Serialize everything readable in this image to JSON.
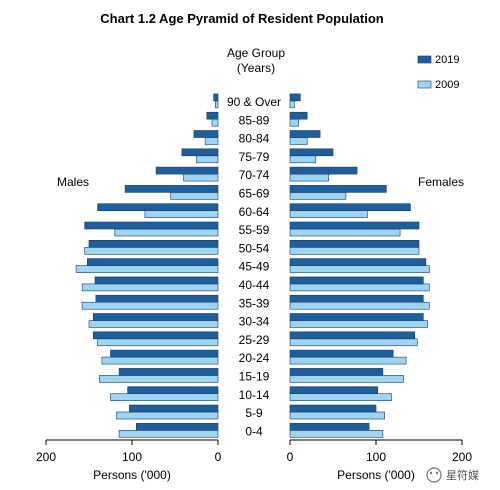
{
  "chart_data": {
    "type": "bar",
    "title": "Chart 1.2  Age Pyramid of Resident Population",
    "age_group_label": "Age Group",
    "age_group_units": "(Years)",
    "left_label": "Males",
    "right_label": "Females",
    "x_axis_label_left": "Persons ('000)",
    "x_axis_label_right": "Persons ('000)",
    "x_ticks_left": [
      "200",
      "100",
      "0"
    ],
    "x_ticks_right": [
      "0",
      "100",
      "200"
    ],
    "xlim": [
      0,
      200
    ],
    "categories": [
      "0-4",
      "5-9",
      "10-14",
      "15-19",
      "20-24",
      "25-29",
      "30-34",
      "35-39",
      "40-44",
      "45-49",
      "50-54",
      "55-59",
      "60-64",
      "65-69",
      "70-74",
      "75-79",
      "80-84",
      "85-89",
      "90 & Over"
    ],
    "series": [
      {
        "name": "2019",
        "color": "#1f5e9c",
        "males": [
          95,
          103,
          105,
          115,
          125,
          145,
          145,
          142,
          143,
          152,
          150,
          155,
          140,
          108,
          72,
          42,
          28,
          13,
          5
        ],
        "females": [
          92,
          100,
          102,
          108,
          120,
          145,
          155,
          155,
          155,
          158,
          150,
          150,
          140,
          112,
          78,
          50,
          35,
          20,
          12
        ]
      },
      {
        "name": "2009",
        "color": "#9fd3f2",
        "males": [
          115,
          118,
          125,
          138,
          135,
          140,
          150,
          158,
          158,
          165,
          155,
          120,
          85,
          55,
          40,
          25,
          15,
          7,
          3
        ],
        "females": [
          108,
          110,
          118,
          132,
          135,
          148,
          160,
          162,
          162,
          162,
          150,
          128,
          90,
          65,
          45,
          30,
          20,
          10,
          5
        ]
      }
    ],
    "legend_position": "top-right",
    "grid": false
  },
  "watermark": "星符媒"
}
